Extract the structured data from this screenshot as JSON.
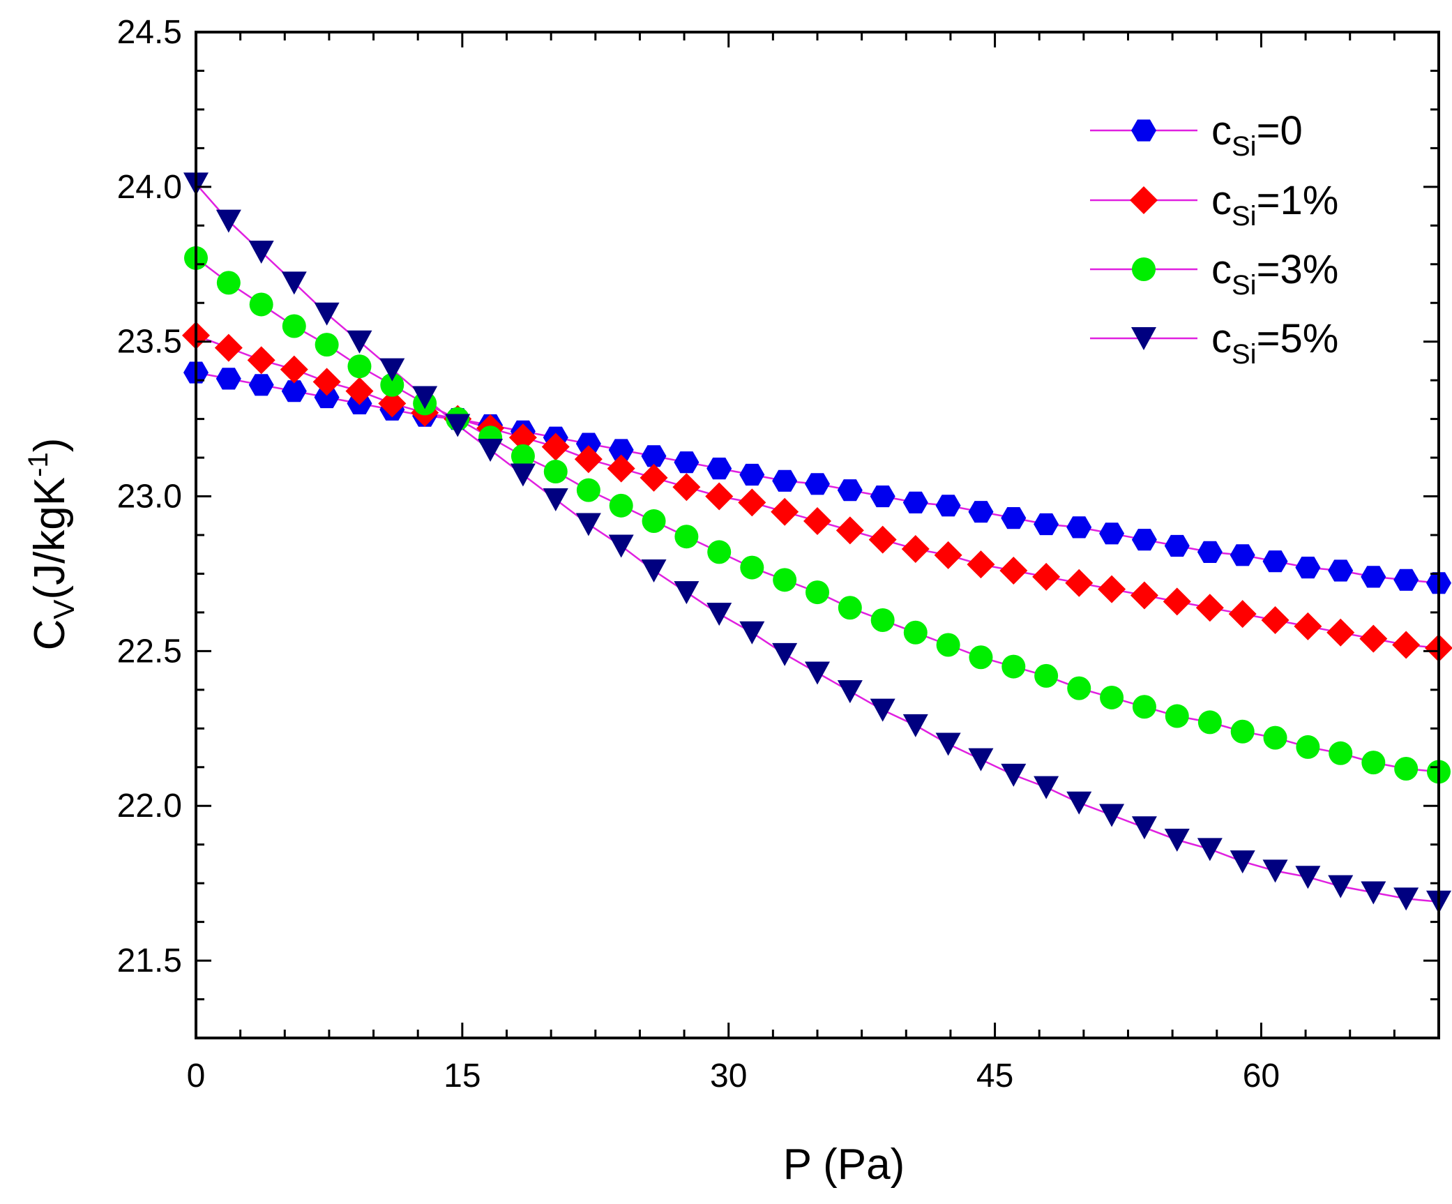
{
  "chart_data": {
    "type": "line",
    "title": "",
    "xlabel": "P (Pa)",
    "ylabel": {
      "main": "C",
      "sub": "V",
      "rest": "(J/kgK",
      "sup": "-1",
      "close": ")"
    },
    "xlim": [
      0,
      70
    ],
    "ylim": [
      21.25,
      24.5
    ],
    "xticks": [
      0,
      15,
      30,
      45,
      60
    ],
    "xtick_labels": [
      "0",
      "15",
      "30",
      "45",
      "60"
    ],
    "xminor_step": 2.5,
    "yticks": [
      21.5,
      22.0,
      22.5,
      23.0,
      23.5,
      24.0,
      24.5
    ],
    "ytick_labels": [
      "21.5",
      "22.0",
      "22.5",
      "23.0",
      "23.5",
      "24.0",
      "24.5"
    ],
    "yminor_step": 0.125,
    "grid": false,
    "legend_position": "top-right",
    "line_color": "#e020e0",
    "x": [
      0,
      1.84,
      3.68,
      5.53,
      7.37,
      9.21,
      11.05,
      12.89,
      14.74,
      16.58,
      18.42,
      20.26,
      22.11,
      23.95,
      25.79,
      27.63,
      29.47,
      31.32,
      33.16,
      35.0,
      36.84,
      38.68,
      40.53,
      42.37,
      44.21,
      46.05,
      47.89,
      49.74,
      51.58,
      53.42,
      55.26,
      57.11,
      58.95,
      60.79,
      62.63,
      64.47,
      66.32,
      68.16,
      70.0
    ],
    "series": [
      {
        "name": "0",
        "label_prefix": "c",
        "label_sub": "Si",
        "label_suffix": "=0",
        "marker": "hexagon",
        "color": "#0000ee",
        "values": [
          23.4,
          23.38,
          23.36,
          23.34,
          23.32,
          23.3,
          23.28,
          23.26,
          23.25,
          23.23,
          23.21,
          23.19,
          23.17,
          23.15,
          23.13,
          23.11,
          23.09,
          23.07,
          23.05,
          23.04,
          23.02,
          23.0,
          22.98,
          22.97,
          22.95,
          22.93,
          22.91,
          22.9,
          22.88,
          22.86,
          22.84,
          22.82,
          22.81,
          22.79,
          22.77,
          22.76,
          22.74,
          22.73,
          22.72
        ]
      },
      {
        "name": "1%",
        "label_prefix": "c",
        "label_sub": "Si",
        "label_suffix": "=1%",
        "marker": "diamond",
        "color": "#ff0000",
        "values": [
          23.52,
          23.48,
          23.44,
          23.41,
          23.37,
          23.34,
          23.3,
          23.27,
          23.25,
          23.22,
          23.19,
          23.16,
          23.12,
          23.09,
          23.06,
          23.03,
          23.0,
          22.98,
          22.95,
          22.92,
          22.89,
          22.86,
          22.83,
          22.81,
          22.78,
          22.76,
          22.74,
          22.72,
          22.7,
          22.68,
          22.66,
          22.64,
          22.62,
          22.6,
          22.58,
          22.56,
          22.54,
          22.52,
          22.51
        ]
      },
      {
        "name": "3%",
        "label_prefix": "c",
        "label_sub": "Si",
        "label_suffix": "=3%",
        "marker": "circle",
        "color": "#00ee00",
        "values": [
          23.77,
          23.69,
          23.62,
          23.55,
          23.49,
          23.42,
          23.36,
          23.3,
          23.25,
          23.19,
          23.13,
          23.08,
          23.02,
          22.97,
          22.92,
          22.87,
          22.82,
          22.77,
          22.73,
          22.69,
          22.64,
          22.6,
          22.56,
          22.52,
          22.48,
          22.45,
          22.42,
          22.38,
          22.35,
          22.32,
          22.29,
          22.27,
          22.24,
          22.22,
          22.19,
          22.17,
          22.14,
          22.12,
          22.11
        ]
      },
      {
        "name": "5%",
        "label_prefix": "c",
        "label_sub": "Si",
        "label_suffix": "=5%",
        "marker": "triangle-down",
        "color": "#000080",
        "values": [
          24.01,
          23.89,
          23.79,
          23.69,
          23.59,
          23.5,
          23.41,
          23.32,
          23.23,
          23.15,
          23.07,
          22.99,
          22.91,
          22.84,
          22.76,
          22.69,
          22.62,
          22.56,
          22.49,
          22.43,
          22.37,
          22.31,
          22.26,
          22.2,
          22.15,
          22.1,
          22.06,
          22.01,
          21.97,
          21.93,
          21.89,
          21.86,
          21.82,
          21.79,
          21.77,
          21.74,
          21.72,
          21.7,
          21.69
        ]
      }
    ]
  }
}
